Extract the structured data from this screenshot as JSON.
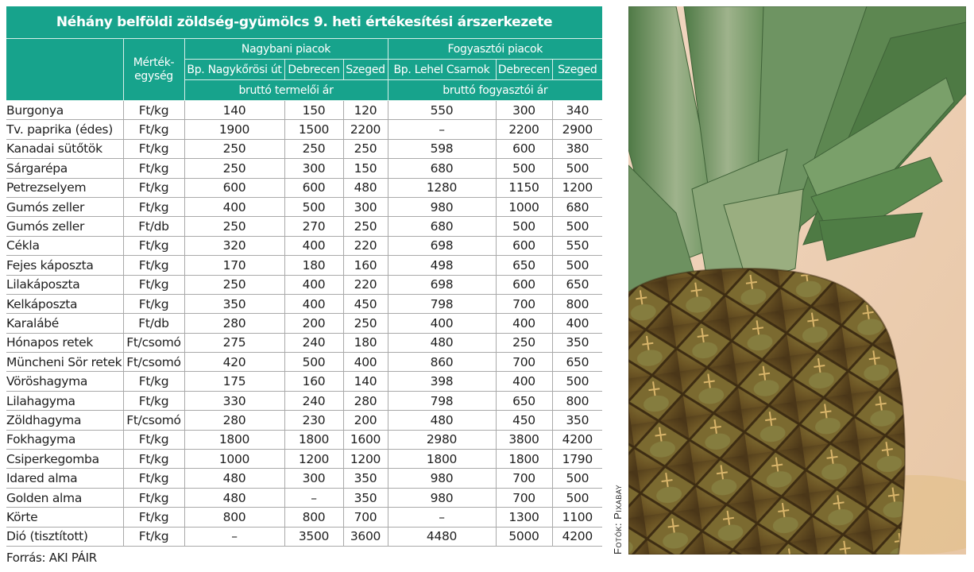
{
  "title": "Néhány belföldi zöldség-gyümölcs 9. heti értékesítési árszerkezete",
  "header": {
    "unit_label": "Mérték-egység",
    "unit_label_line1": "Mérték-",
    "unit_label_line2": "egység",
    "groups": [
      {
        "label": "Nagybani piacok",
        "subtitle": "bruttó termelői ár",
        "markets": [
          "Bp. Nagykőrösi út",
          "Debrecen",
          "Szeged"
        ]
      },
      {
        "label": "Fogyasztói piacok",
        "subtitle": "bruttó fogyasztói ár",
        "markets": [
          "Bp. Lehel Csarnok",
          "Debrecen",
          "Szeged"
        ]
      }
    ]
  },
  "rows": [
    {
      "name": "Burgonya",
      "unit": "Ft/kg",
      "values": [
        "140",
        "150",
        "120",
        "550",
        "300",
        "340"
      ]
    },
    {
      "name": "Tv. paprika (édes)",
      "unit": "Ft/kg",
      "values": [
        "1900",
        "1500",
        "2200",
        "–",
        "2200",
        "2900"
      ]
    },
    {
      "name": "Kanadai sütőtök",
      "unit": "Ft/kg",
      "values": [
        "250",
        "250",
        "250",
        "598",
        "600",
        "380"
      ]
    },
    {
      "name": "Sárgarépa",
      "unit": "Ft/kg",
      "values": [
        "250",
        "300",
        "150",
        "680",
        "500",
        "500"
      ]
    },
    {
      "name": "Petrezselyem",
      "unit": "Ft/kg",
      "values": [
        "600",
        "600",
        "480",
        "1280",
        "1150",
        "1200"
      ]
    },
    {
      "name": "Gumós zeller",
      "unit": "Ft/kg",
      "values": [
        "400",
        "500",
        "300",
        "980",
        "1000",
        "680"
      ]
    },
    {
      "name": "Gumós zeller",
      "unit": "Ft/db",
      "values": [
        "250",
        "270",
        "250",
        "680",
        "500",
        "500"
      ]
    },
    {
      "name": "Cékla",
      "unit": "Ft/kg",
      "values": [
        "320",
        "400",
        "220",
        "698",
        "600",
        "550"
      ]
    },
    {
      "name": "Fejes káposzta",
      "unit": "Ft/kg",
      "values": [
        "170",
        "180",
        "160",
        "498",
        "650",
        "500"
      ]
    },
    {
      "name": "Lilakáposzta",
      "unit": "Ft/kg",
      "values": [
        "250",
        "400",
        "220",
        "698",
        "600",
        "650"
      ]
    },
    {
      "name": "Kelkáposzta",
      "unit": "Ft/kg",
      "values": [
        "350",
        "400",
        "450",
        "798",
        "700",
        "800"
      ]
    },
    {
      "name": "Karalábé",
      "unit": "Ft/db",
      "values": [
        "280",
        "200",
        "250",
        "400",
        "400",
        "400"
      ]
    },
    {
      "name": "Hónapos retek",
      "unit": "Ft/csomó",
      "values": [
        "275",
        "240",
        "180",
        "480",
        "250",
        "350"
      ]
    },
    {
      "name": "Müncheni Sör retek",
      "unit": "Ft/csomó",
      "values": [
        "420",
        "500",
        "400",
        "860",
        "700",
        "650"
      ]
    },
    {
      "name": "Vöröshagyma",
      "unit": "Ft/kg",
      "values": [
        "175",
        "160",
        "140",
        "398",
        "400",
        "500"
      ]
    },
    {
      "name": "Lilahagyma",
      "unit": "Ft/kg",
      "values": [
        "330",
        "240",
        "280",
        "798",
        "650",
        "800"
      ]
    },
    {
      "name": "Zöldhagyma",
      "unit": "Ft/csomó",
      "values": [
        "280",
        "230",
        "200",
        "480",
        "450",
        "350"
      ]
    },
    {
      "name": "Fokhagyma",
      "unit": "Ft/kg",
      "values": [
        "1800",
        "1800",
        "1600",
        "2980",
        "3800",
        "4200"
      ]
    },
    {
      "name": "Csiperkegomba",
      "unit": "Ft/kg",
      "values": [
        "1000",
        "1200",
        "1200",
        "1800",
        "1800",
        "1790"
      ]
    },
    {
      "name": "Idared alma",
      "unit": "Ft/kg",
      "values": [
        "480",
        "300",
        "350",
        "980",
        "700",
        "500"
      ]
    },
    {
      "name": "Golden alma",
      "unit": "Ft/kg",
      "values": [
        "480",
        "–",
        "350",
        "980",
        "700",
        "500"
      ]
    },
    {
      "name": "Körte",
      "unit": "Ft/kg",
      "values": [
        "800",
        "800",
        "700",
        "–",
        "1300",
        "1100"
      ]
    },
    {
      "name": "Dió (tisztított)",
      "unit": "Ft/kg",
      "values": [
        "–",
        "3500",
        "3600",
        "4480",
        "5000",
        "4200"
      ]
    }
  ],
  "source": "Forrás: AKI PÁIR",
  "photo": {
    "subject": "pineapple-photo",
    "credit": "Fotók: Pixabay"
  },
  "colors": {
    "header_bg": "#17a38c",
    "header_text": "#ffffff",
    "grid": "#a9a9a9",
    "text": "#1e1e1e"
  }
}
